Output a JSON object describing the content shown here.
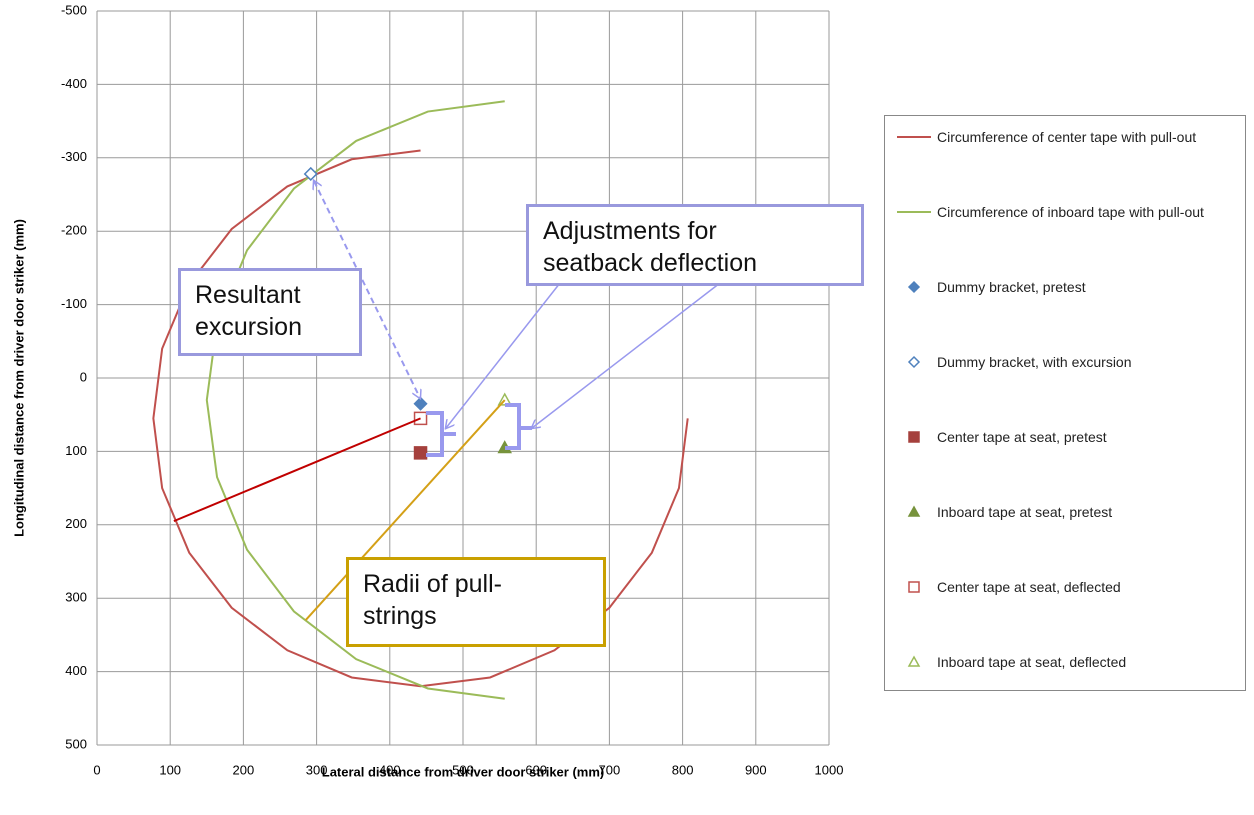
{
  "chart_data": {
    "type": "scatter",
    "xlabel": "Lateral distance from driver door striker (mm)",
    "ylabel": "Longitudinal distance from driver door striker (mm)",
    "xlim": [
      0,
      1000
    ],
    "xticks": [
      0,
      100,
      200,
      300,
      400,
      500,
      600,
      700,
      800,
      900,
      1000
    ],
    "ylim": [
      500,
      -500
    ],
    "yticks": [
      -500,
      -400,
      -300,
      -200,
      -100,
      0,
      100,
      200,
      300,
      400,
      500
    ],
    "y_reversed": true,
    "grid": true,
    "legend": "right",
    "series": [
      {
        "name": "Circumference of center tape with pull-out",
        "color": "#c0504d",
        "mode": "line",
        "x": [
          442,
          348,
          260,
          184,
          126,
          89,
          77,
          89,
          126,
          184,
          260,
          348,
          442,
          537,
          625,
          700,
          758,
          795,
          807
        ],
        "values": [
          -310,
          -298,
          -261,
          -203,
          -128,
          -40,
          55,
          150,
          238,
          313,
          371,
          408,
          420,
          408,
          371,
          313,
          238,
          150,
          55
        ]
      },
      {
        "name": "Circumference of inboard tape with pull-out",
        "color": "#9bbb59",
        "mode": "line",
        "x": [
          557,
          452,
          354,
          269,
          205,
          164,
          150,
          164,
          205,
          269,
          354,
          452,
          557
        ],
        "values": [
          -377,
          -363,
          -323,
          -258,
          -174,
          -75,
          30,
          135,
          234,
          318,
          383,
          423,
          437
        ]
      },
      {
        "name": "Dummy bracket, pretest",
        "color": "#4f81bd",
        "mode": "marker",
        "marker": "diamond",
        "filled": true,
        "x": [
          442
        ],
        "values": [
          35
        ]
      },
      {
        "name": "Dummy bracket, with excursion",
        "color": "#4f81bd",
        "mode": "marker",
        "marker": "diamond",
        "filled": false,
        "x": [
          292
        ],
        "values": [
          -278
        ]
      },
      {
        "name": "Center tape at seat, pretest",
        "color": "#a5403d",
        "mode": "marker",
        "marker": "square",
        "filled": true,
        "x": [
          442
        ],
        "values": [
          102
        ]
      },
      {
        "name": "Inboard tape at seat, pretest",
        "color": "#77933c",
        "mode": "marker",
        "marker": "triangle",
        "filled": true,
        "x": [
          557
        ],
        "values": [
          95
        ]
      },
      {
        "name": "Center tape at seat, deflected",
        "color": "#c0504d",
        "mode": "marker",
        "marker": "square",
        "filled": false,
        "x": [
          442
        ],
        "values": [
          55
        ]
      },
      {
        "name": "Inboard tape at seat, deflected",
        "color": "#9bbb59",
        "mode": "marker",
        "marker": "triangle",
        "filled": false,
        "x": [
          557
        ],
        "values": [
          30
        ]
      },
      {
        "color": "#c00000",
        "mode": "line",
        "x": [
          105,
          442
        ],
        "values": [
          195,
          55
        ]
      },
      {
        "color": "#d4a017",
        "mode": "line",
        "x": [
          285,
          557
        ],
        "values": [
          330,
          30
        ]
      }
    ],
    "annotations": [
      {
        "lines": [
          "Resultant",
          "excursion"
        ],
        "color": "#9999dd"
      },
      {
        "lines": [
          "Adjustments for",
          "seatback deflection"
        ],
        "color": "#9999dd"
      },
      {
        "lines": [
          "Radii of pull-",
          "strings"
        ],
        "color": "#c9a000"
      }
    ]
  }
}
